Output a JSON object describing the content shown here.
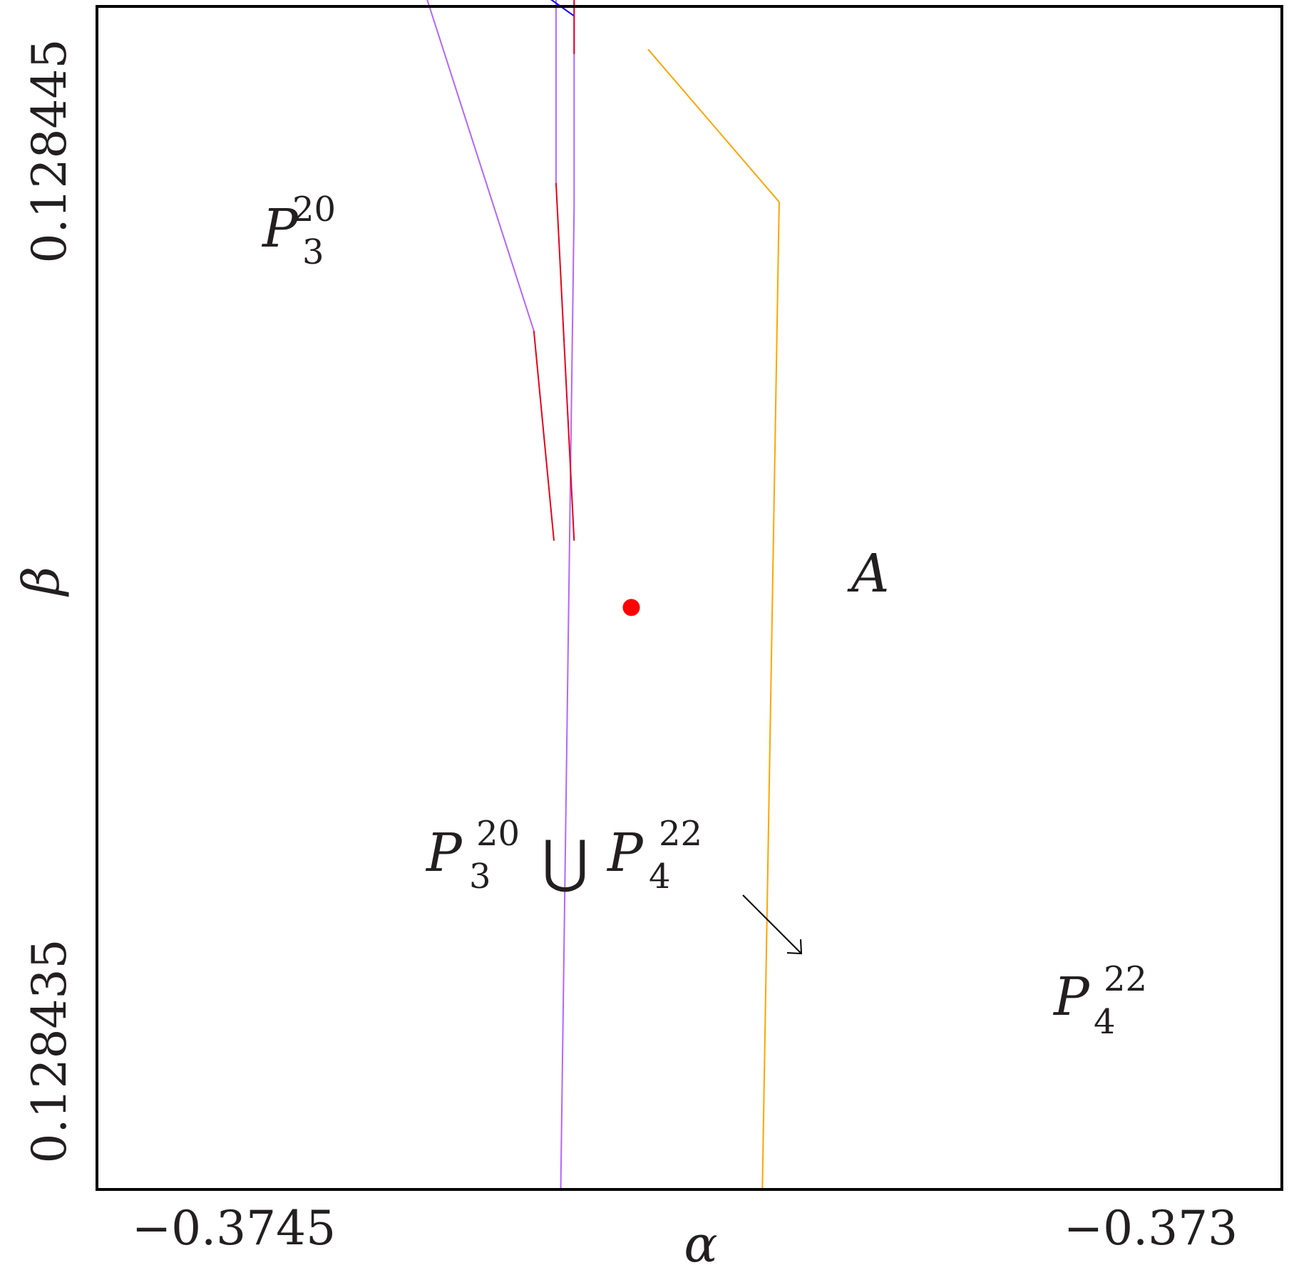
{
  "chart_data": {
    "type": "line",
    "title": "",
    "xlabel": "α",
    "ylabel": "β",
    "xlim": [
      -0.37463,
      -0.372867
    ],
    "ylim": [
      0.1284337,
      0.1284461
    ],
    "x_ticks": [
      {
        "value": -0.3745,
        "label": "−0.3745"
      },
      {
        "value": -0.373,
        "label": "−0.373"
      }
    ],
    "y_ticks": [
      {
        "value": 0.128435,
        "label": "0.128435"
      },
      {
        "value": 0.128445,
        "label": "0.128445"
      }
    ],
    "grid": false,
    "series": [
      {
        "color": "#ffa500",
        "points": [
          [
            -0.37364,
            0.1284337
          ],
          [
            -0.373615,
            0.12844405
          ],
          [
            -0.37381,
            0.12844565
          ]
        ]
      },
      {
        "color": "#b366ff",
        "points": [
          [
            -0.37394,
            0.1284337
          ],
          [
            -0.37392,
            0.128444
          ],
          [
            -0.37392,
            0.12844615
          ]
        ]
      },
      {
        "color": "#b366ff",
        "points": [
          [
            -0.373947,
            0.1284462
          ],
          [
            -0.373947,
            0.12844425
          ]
        ]
      },
      {
        "color": "#b366ff",
        "points": [
          [
            -0.37414,
            0.1284462
          ],
          [
            -0.37398,
            0.1284427
          ]
        ]
      },
      {
        "color": "#e8001c",
        "points": [
          [
            -0.37398,
            0.1284427
          ],
          [
            -0.37395,
            0.1284405
          ]
        ]
      },
      {
        "color": "#e8001c",
        "points": [
          [
            -0.373947,
            0.12844425
          ],
          [
            -0.37392,
            0.1284405
          ]
        ]
      },
      {
        "color": "#0000ff",
        "points": [
          [
            -0.37396,
            0.1284462
          ],
          [
            -0.37392,
            0.128446
          ]
        ]
      },
      {
        "color": "#e8001c",
        "points": [
          [
            -0.37392,
            0.1284462
          ],
          [
            -0.37392,
            0.1284456
          ]
        ]
      }
    ],
    "point_A": {
      "x": -0.373835,
      "y": 0.1284398,
      "color": "#ff0000",
      "label": "A"
    },
    "regions": [
      {
        "main": "P",
        "sub": "3",
        "sup": "20"
      },
      {
        "main": "P",
        "sub": "4",
        "sup": "22"
      }
    ],
    "union_label": {
      "left_main": "P",
      "left_sub": "3",
      "left_sup": "20",
      "operator": "⋃",
      "right_main": "P",
      "right_sub": "4",
      "right_sup": "22"
    }
  }
}
